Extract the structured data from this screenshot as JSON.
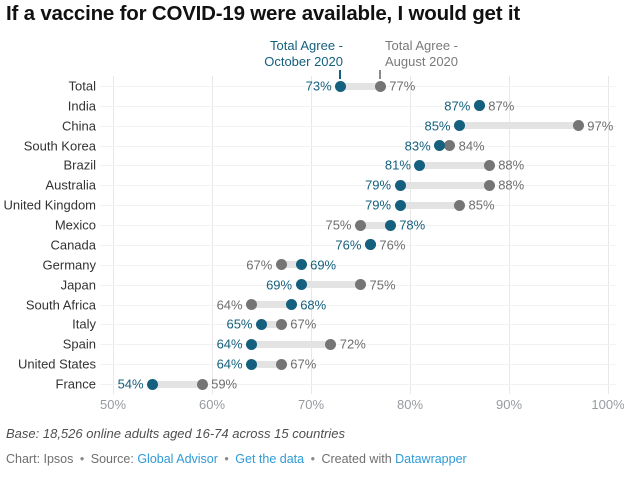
{
  "title": "If a vaccine for COVID-19 were available, I would get it",
  "legend": {
    "october": {
      "line1": "Total Agree -",
      "line2": "October 2020"
    },
    "august": {
      "line1": "Total Agree -",
      "line2": "August 2020"
    }
  },
  "colors": {
    "october_series": "#15607e",
    "august_series": "#757575",
    "connector": "#e3e3e3",
    "gridline": "#e8e8e8",
    "axis_label": "#979ba1",
    "footer_link": "#2e9bd6"
  },
  "chart_data": {
    "type": "scatter",
    "subtype": "dumbbell-range",
    "title": "If a vaccine for COVID-19 were available, I would get it",
    "categories": [
      "Total",
      "India",
      "China",
      "South Korea",
      "Brazil",
      "Australia",
      "United Kingdom",
      "Mexico",
      "Canada",
      "Germany",
      "Japan",
      "South Africa",
      "Italy",
      "Spain",
      "United States",
      "France"
    ],
    "series": [
      {
        "name": "Total Agree - October 2020",
        "color": "#15607e",
        "values": [
          73,
          87,
          85,
          83,
          81,
          79,
          79,
          78,
          76,
          69,
          69,
          68,
          65,
          64,
          64,
          54
        ]
      },
      {
        "name": "Total Agree - August 2020",
        "color": "#757575",
        "values": [
          77,
          87,
          97,
          84,
          88,
          88,
          85,
          75,
          76,
          67,
          75,
          64,
          67,
          72,
          67,
          59
        ]
      }
    ],
    "value_suffix": "%",
    "xlim": [
      50,
      100
    ],
    "x_ticks": [
      "50%",
      "60%",
      "70%",
      "80%",
      "90%",
      "100%"
    ],
    "grid": true,
    "legend_position": "top"
  },
  "footer": {
    "base_note": "Base: 18,526 online adults aged 16-74 across 15 countries",
    "chart_label": "Chart: Ipsos",
    "source_label": "Source:",
    "source_link": "Global Advisor",
    "get_data_link": "Get the data",
    "created_with": "Created with",
    "created_link": "Datawrapper",
    "separator": "•"
  }
}
